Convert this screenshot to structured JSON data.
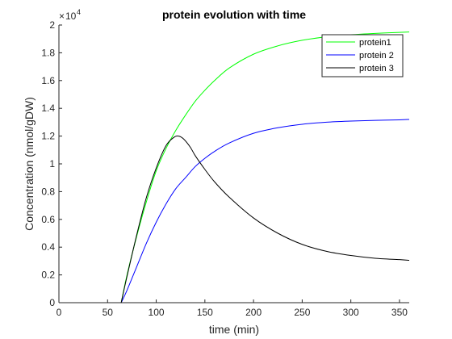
{
  "chart_data": {
    "type": "line",
    "title": "protein evolution with time",
    "xlabel": "time (min)",
    "ylabel": "Concentration (nmol/gDW)",
    "xlim": [
      0,
      360
    ],
    "ylim": [
      0,
      20000
    ],
    "xticks": [
      0,
      50,
      100,
      150,
      200,
      250,
      300,
      350
    ],
    "yticks": [
      0,
      2000,
      4000,
      6000,
      8000,
      10000,
      12000,
      14000,
      16000,
      18000,
      20000
    ],
    "ytick_labels": [
      "0",
      "0.2",
      "0.4",
      "0.6",
      "0.8",
      "1",
      "1.2",
      "1.4",
      "1.6",
      "1.8",
      "2"
    ],
    "y_multiplier": "10",
    "y_multiplier_exp": "4",
    "grid": false,
    "legend_position": "top-right",
    "series": [
      {
        "name": "protein1",
        "color": "#00ff00",
        "x": [
          64,
          70,
          80,
          90,
          100,
          110,
          120,
          130,
          140,
          150,
          160,
          175,
          200,
          225,
          250,
          275,
          300,
          325,
          350,
          360
        ],
        "y": [
          0,
          2000,
          4800,
          7300,
          9500,
          11100,
          12400,
          13500,
          14500,
          15300,
          16000,
          16900,
          17900,
          18500,
          18900,
          19150,
          19300,
          19400,
          19470,
          19500
        ]
      },
      {
        "name": "protein 2",
        "color": "#0000ff",
        "x": [
          64,
          70,
          80,
          90,
          100,
          110,
          120,
          130,
          140,
          150,
          160,
          175,
          200,
          225,
          250,
          275,
          300,
          325,
          350,
          360
        ],
        "y": [
          0,
          900,
          2600,
          4300,
          5800,
          7100,
          8200,
          9000,
          9800,
          10400,
          10900,
          11500,
          12200,
          12600,
          12850,
          13000,
          13080,
          13130,
          13170,
          13200
        ]
      },
      {
        "name": "protein 3",
        "color": "#000000",
        "x": [
          64,
          70,
          80,
          90,
          100,
          110,
          118,
          123,
          128,
          135,
          140,
          150,
          160,
          175,
          200,
          225,
          250,
          275,
          300,
          325,
          350,
          360
        ],
        "y": [
          0,
          1900,
          4900,
          7600,
          9700,
          11300,
          11900,
          12000,
          11800,
          11200,
          10600,
          9600,
          8700,
          7600,
          6100,
          5000,
          4200,
          3700,
          3400,
          3200,
          3100,
          3050
        ]
      }
    ]
  }
}
